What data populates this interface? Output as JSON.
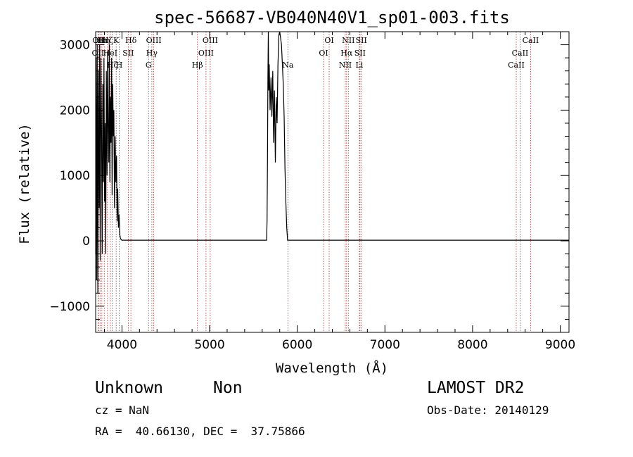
{
  "chart_data": {
    "type": "line",
    "title": "spec-56687-VB040N40V1_sp01-003.fits",
    "xlabel": "Wavelength (Å)",
    "ylabel": "Flux (relative)",
    "xlim": [
      3700,
      9100
    ],
    "ylim": [
      -1400,
      3200
    ],
    "xticks": [
      4000,
      5000,
      6000,
      7000,
      8000,
      9000
    ],
    "xtick_labels": [
      "4000",
      "5000",
      "6000",
      "7000",
      "8000",
      "9000"
    ],
    "yticks": [
      -1000,
      0,
      1000,
      2000,
      3000
    ],
    "ytick_labels": [
      "−1000",
      "0",
      "1000",
      "2000",
      "3000"
    ],
    "grid": false,
    "series": [
      {
        "x": [
          3700,
          3705,
          3712,
          3718,
          3725,
          3732,
          3740,
          3746,
          3752,
          3760,
          3768,
          3775,
          3782,
          3788,
          3795,
          3802,
          3808,
          3815,
          3822,
          3830,
          3836,
          3842,
          3850,
          3856,
          3862,
          3868,
          3875,
          3882,
          3888,
          3895,
          3902,
          3908,
          3915,
          3922,
          3930,
          3938,
          3945,
          3952,
          3960,
          3968,
          3975,
          3982,
          3990,
          4000,
          4500,
          5000,
          5500,
          5600,
          5650,
          5655,
          5660,
          5665,
          5670,
          5675,
          5680,
          5690,
          5700,
          5710,
          5720,
          5730,
          5740,
          5750,
          5760,
          5770,
          5780,
          5790,
          5800,
          5810,
          5820,
          5830,
          5840,
          5850,
          5860,
          5870,
          5880,
          5890,
          5900,
          5920,
          6000,
          7000,
          8000,
          9000,
          9100
        ],
        "y": [
          -200,
          2800,
          -600,
          3000,
          -800,
          2600,
          500,
          3000,
          -300,
          2800,
          1500,
          -200,
          2400,
          900,
          2800,
          600,
          1800,
          -200,
          2600,
          1000,
          2900,
          1800,
          1200,
          3000,
          900,
          2200,
          1500,
          2800,
          700,
          2400,
          1600,
          2000,
          500,
          1600,
          900,
          1300,
          300,
          800,
          200,
          400,
          100,
          50,
          20,
          10,
          10,
          10,
          10,
          10,
          10,
          300,
          1200,
          2500,
          3200,
          2300,
          2700,
          2000,
          2500,
          1900,
          2600,
          1500,
          2300,
          1200,
          2200,
          1800,
          2700,
          3150,
          3200,
          3100,
          3000,
          2700,
          2400,
          1900,
          1100,
          600,
          200,
          10,
          10,
          10,
          10,
          10,
          10,
          10,
          10
        ]
      }
    ],
    "lines": [
      {
        "x": 3727,
        "label": "OII",
        "row": 1
      },
      {
        "x": 3733,
        "label": "OII",
        "row": 0
      },
      {
        "x": 3750,
        "label": "Hθ",
        "row": 0
      },
      {
        "x": 3771,
        "label": "Hι",
        "row": 0
      },
      {
        "x": 3798,
        "label": "Hη",
        "row": 0
      },
      {
        "x": 3835,
        "label": "Hζ",
        "row": 0
      },
      {
        "x": 3868,
        "label": "HeI",
        "row": 1
      },
      {
        "x": 3889,
        "label": "Hζ",
        "row": 2
      },
      {
        "x": 3934,
        "label": "K",
        "row": 0
      },
      {
        "x": 3969,
        "label": "H",
        "row": 2
      },
      {
        "x": 4072,
        "label": "SII",
        "row": 1
      },
      {
        "x": 4102,
        "label": "Hδ",
        "row": 0
      },
      {
        "x": 4304,
        "label": "G",
        "row": 2
      },
      {
        "x": 4341,
        "label": "Hγ",
        "row": 1
      },
      {
        "x": 4363,
        "label": "OIII",
        "row": 0
      },
      {
        "x": 4861,
        "label": "Hβ",
        "row": 2
      },
      {
        "x": 4959,
        "label": "OIII",
        "row": 1
      },
      {
        "x": 5007,
        "label": "OIII",
        "row": 0
      },
      {
        "x": 5893,
        "label": "Na",
        "row": 2
      },
      {
        "x": 6300,
        "label": "OI",
        "row": 1
      },
      {
        "x": 6364,
        "label": "OI",
        "row": 0
      },
      {
        "x": 6548,
        "label": "NII",
        "row": 2
      },
      {
        "x": 6563,
        "label": "Hα",
        "row": 1
      },
      {
        "x": 6583,
        "label": "NII",
        "row": 0
      },
      {
        "x": 6708,
        "label": "Li",
        "row": 2
      },
      {
        "x": 6716,
        "label": "SII",
        "row": 1
      },
      {
        "x": 6731,
        "label": "SII",
        "row": 0
      },
      {
        "x": 8498,
        "label": "CaII",
        "row": 2
      },
      {
        "x": 8542,
        "label": "CaII",
        "row": 1
      },
      {
        "x": 8662,
        "label": "CaII",
        "row": 0
      }
    ]
  },
  "info": {
    "class_label": "Unknown",
    "subclass_label": "Non",
    "survey": "LAMOST DR2",
    "cz": "cz = NaN",
    "obs_date": "Obs-Date: 20140129",
    "coords": "RA =  40.66130, DEC =  37.75866"
  }
}
